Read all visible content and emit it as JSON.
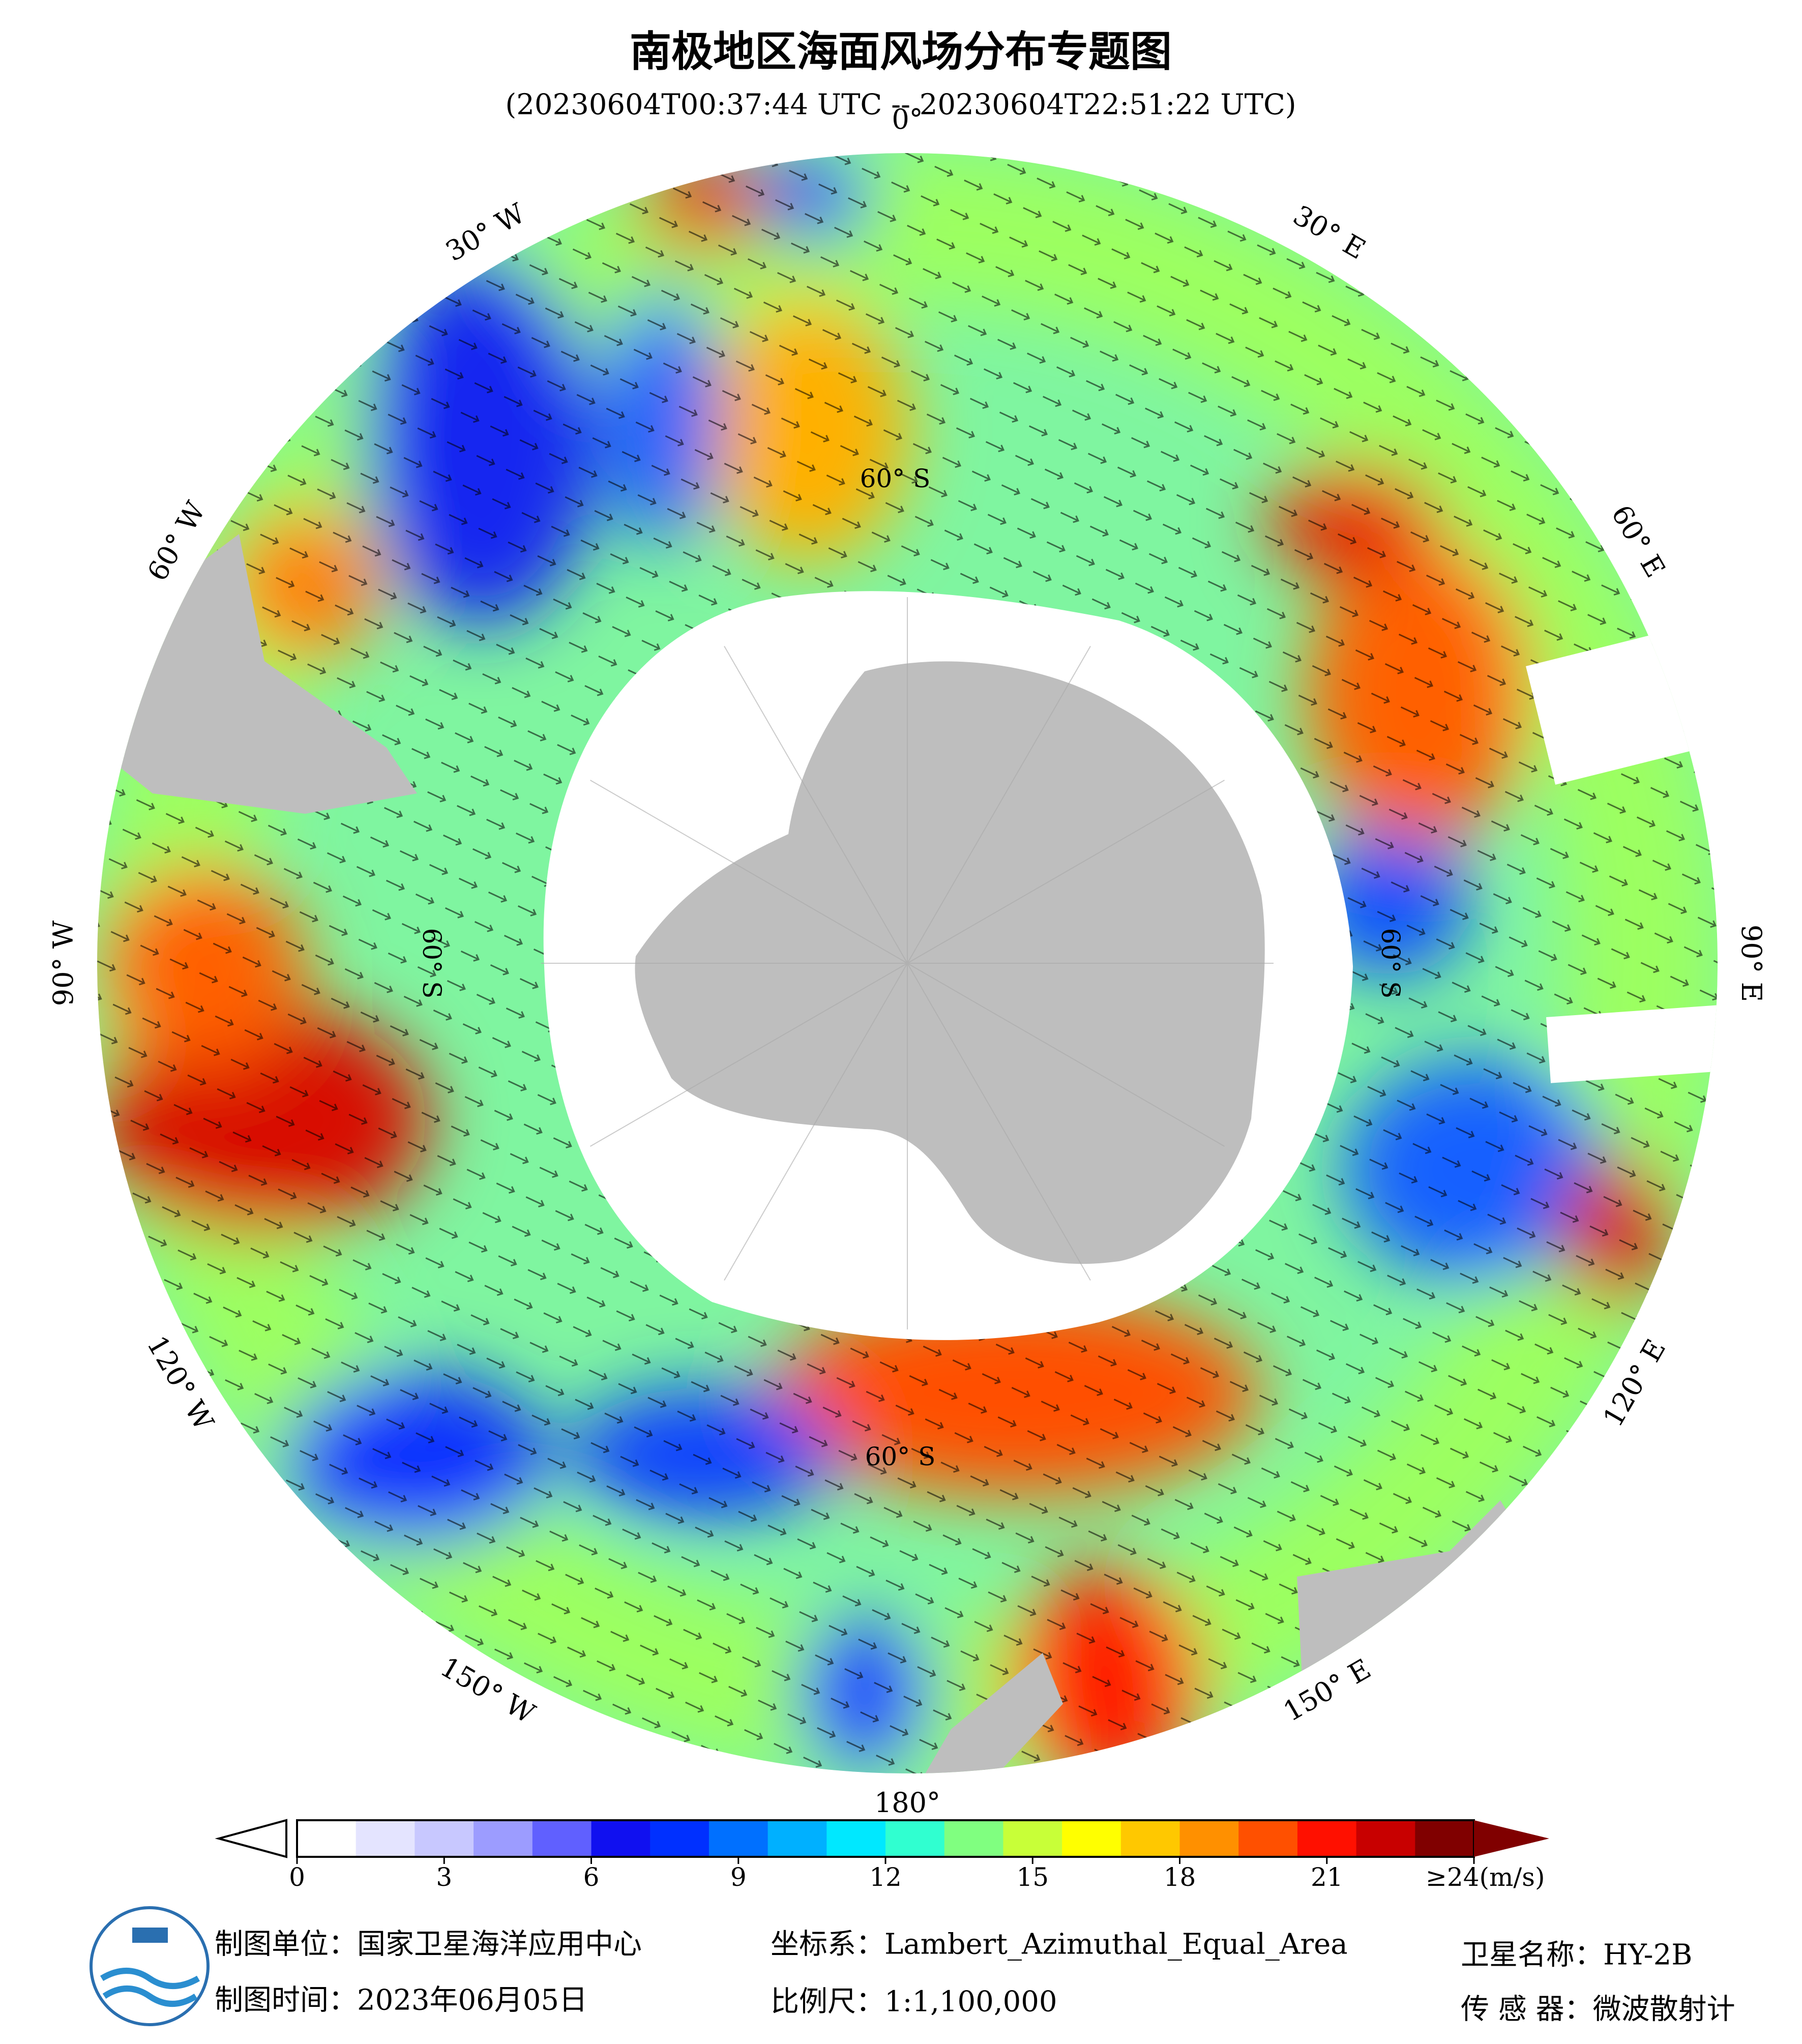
{
  "title": "南极地区海面风场分布专题图",
  "subtitle": "(20230604T00:37:44 UTC -- 20230604T22:51:22 UTC)",
  "map": {
    "longitude_labels": [
      "0°",
      "30° E",
      "60° E",
      "90° E",
      "120° E",
      "150° E",
      "180°",
      "150° W",
      "120° W",
      "90° W",
      "60° W",
      "30° W"
    ],
    "latitude_labels": [
      "60° S",
      "60° S",
      "60° S",
      "60° S"
    ]
  },
  "colorbar": {
    "lim": [
      0,
      24
    ],
    "ticks": [
      0,
      3,
      6,
      9,
      12,
      15,
      18,
      21,
      {
        "value": 24,
        "label": "≥24(m/s)"
      }
    ],
    "colors": [
      "#ffffff",
      "#e4e4ff",
      "#c8c8ff",
      "#9c9cff",
      "#6060ff",
      "#1010f0",
      "#0030ff",
      "#0070ff",
      "#00b0ff",
      "#00e8ff",
      "#30ffd0",
      "#80ff80",
      "#c8ff38",
      "#ffff00",
      "#ffc800",
      "#ff9000",
      "#ff5000",
      "#ff1000",
      "#c80000",
      "#800000"
    ]
  },
  "footer": {
    "unit": "制图单位：国家卫星海洋应用中心",
    "date": "制图时间：2023年06月05日",
    "projection": "坐标系：Lambert_Azimuthal_Equal_Area",
    "scale": "比例尺：1:1,100,000",
    "satellite": "卫星名称：HY-2B",
    "sensor": "传 感 器：微波散射计"
  }
}
